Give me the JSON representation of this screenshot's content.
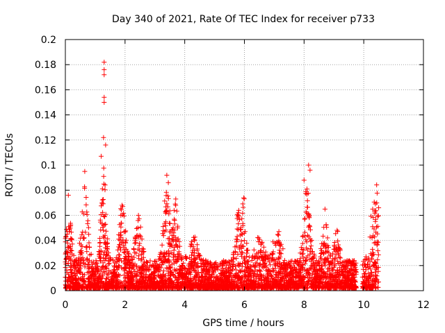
{
  "chart_data": {
    "type": "scatter",
    "title": "Day 340 of 2021, Rate Of TEC Index for receiver p733",
    "xlabel": "GPS time / hours",
    "ylabel": "ROTI / TECUs",
    "xlim": [
      0,
      12
    ],
    "ylim": [
      0,
      0.2
    ],
    "x_ticks": [
      0,
      2,
      4,
      6,
      8,
      10,
      12
    ],
    "x_tick_labels": [
      "0",
      "2",
      "4",
      "6",
      "8",
      "10",
      "12"
    ],
    "y_ticks": [
      0,
      0.02,
      0.04,
      0.06,
      0.08,
      0.1,
      0.12,
      0.14,
      0.16,
      0.18,
      0.2
    ],
    "y_tick_labels": [
      "0",
      "0.02",
      "0.04",
      "0.06",
      "0.08",
      "0.1",
      "0.12",
      "0.14",
      "0.16",
      "0.18",
      "0.2"
    ],
    "grid": true,
    "marker": "+",
    "color": "#ff0000",
    "data_x_range": [
      0,
      10.5
    ],
    "data_gap": [
      9.75,
      9.95
    ],
    "peaks": [
      {
        "x": 0.1,
        "y": 0.076
      },
      {
        "x": 0.65,
        "y": 0.095
      },
      {
        "x": 1.2,
        "y": 0.107
      },
      {
        "x": 1.3,
        "y": 0.182
      },
      {
        "x": 1.3,
        "y": 0.176
      },
      {
        "x": 1.3,
        "y": 0.172
      },
      {
        "x": 1.3,
        "y": 0.154
      },
      {
        "x": 1.3,
        "y": 0.15
      },
      {
        "x": 1.28,
        "y": 0.122
      },
      {
        "x": 1.35,
        "y": 0.116
      },
      {
        "x": 1.9,
        "y": 0.068
      },
      {
        "x": 2.45,
        "y": 0.06
      },
      {
        "x": 3.4,
        "y": 0.092
      },
      {
        "x": 3.45,
        "y": 0.086
      },
      {
        "x": 3.7,
        "y": 0.073
      },
      {
        "x": 5.8,
        "y": 0.062
      },
      {
        "x": 5.98,
        "y": 0.074
      },
      {
        "x": 8.0,
        "y": 0.088
      },
      {
        "x": 8.15,
        "y": 0.1
      },
      {
        "x": 8.2,
        "y": 0.096
      },
      {
        "x": 8.7,
        "y": 0.065
      },
      {
        "x": 10.3,
        "y": 0.065
      },
      {
        "x": 10.5,
        "y": 0.066
      }
    ]
  }
}
